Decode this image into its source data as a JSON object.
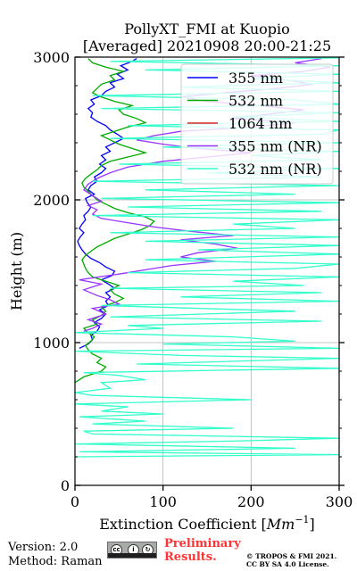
{
  "chart_data": {
    "type": "line",
    "orientation": "vertical-profile",
    "title_line1": "PollyXT_FMI at Kuopio",
    "title_line2": "[Averaged] 20210908 20:00-21:25",
    "xlabel": "Extinction Coefficient [Mm⁻¹]",
    "xlabel_prefix": "Extinction Coefficient [",
    "xlabel_unit": "Mm",
    "xlabel_exp": "−1",
    "xlabel_suffix": "]",
    "ylabel": "Height (m)",
    "xlim": [
      0,
      300
    ],
    "ylim": [
      0,
      3000
    ],
    "xticks": [
      "0",
      "100",
      "200",
      "300"
    ],
    "yticks": [
      "0",
      "1000",
      "2000",
      "3000"
    ],
    "grid": true,
    "legend_position": "top-right",
    "series": [
      {
        "name": "355 nm",
        "color": "#0000ff",
        "points": [
          [
            5,
            960
          ],
          [
            15,
            990
          ],
          [
            20,
            1020
          ],
          [
            18,
            1050
          ],
          [
            25,
            1080
          ],
          [
            28,
            1110
          ],
          [
            22,
            1140
          ],
          [
            30,
            1170
          ],
          [
            35,
            1200
          ],
          [
            28,
            1230
          ],
          [
            38,
            1260
          ],
          [
            35,
            1290
          ],
          [
            40,
            1320
          ],
          [
            35,
            1350
          ],
          [
            45,
            1380
          ],
          [
            38,
            1410
          ],
          [
            30,
            1440
          ],
          [
            42,
            1470
          ],
          [
            45,
            1500
          ],
          [
            35,
            1530
          ],
          [
            28,
            1560
          ],
          [
            18,
            1590
          ],
          [
            12,
            1620
          ],
          [
            8,
            1650
          ],
          [
            5,
            1680
          ],
          [
            3,
            1710
          ],
          [
            6,
            1740
          ],
          [
            10,
            1770
          ],
          [
            5,
            1800
          ],
          [
            8,
            1830
          ],
          [
            12,
            1860
          ],
          [
            10,
            1890
          ],
          [
            15,
            1920
          ],
          [
            18,
            1950
          ],
          [
            14,
            1980
          ],
          [
            12,
            2010
          ],
          [
            22,
            2040
          ],
          [
            15,
            2070
          ],
          [
            18,
            2100
          ],
          [
            25,
            2130
          ],
          [
            22,
            2160
          ],
          [
            30,
            2190
          ],
          [
            35,
            2220
          ],
          [
            28,
            2250
          ],
          [
            35,
            2280
          ],
          [
            30,
            2310
          ],
          [
            40,
            2340
          ],
          [
            35,
            2370
          ],
          [
            45,
            2400
          ],
          [
            55,
            2430
          ],
          [
            48,
            2460
          ],
          [
            40,
            2490
          ],
          [
            35,
            2520
          ],
          [
            25,
            2550
          ],
          [
            18,
            2580
          ],
          [
            20,
            2610
          ],
          [
            15,
            2640
          ],
          [
            22,
            2670
          ],
          [
            18,
            2700
          ],
          [
            30,
            2730
          ],
          [
            35,
            2760
          ],
          [
            45,
            2790
          ],
          [
            40,
            2820
          ],
          [
            55,
            2850
          ],
          [
            48,
            2880
          ],
          [
            60,
            2910
          ],
          [
            52,
            2940
          ],
          [
            65,
            2970
          ],
          [
            70,
            2990
          ]
        ]
      },
      {
        "name": "532 nm",
        "color": "#00aa00",
        "points": [
          [
            0,
            720
          ],
          [
            10,
            760
          ],
          [
            30,
            800
          ],
          [
            35,
            830
          ],
          [
            25,
            860
          ],
          [
            30,
            890
          ],
          [
            20,
            920
          ],
          [
            15,
            950
          ],
          [
            12,
            980
          ],
          [
            18,
            1010
          ],
          [
            22,
            1040
          ],
          [
            15,
            1070
          ],
          [
            10,
            1100
          ],
          [
            25,
            1130
          ],
          [
            20,
            1160
          ],
          [
            30,
            1190
          ],
          [
            35,
            1220
          ],
          [
            30,
            1250
          ],
          [
            45,
            1280
          ],
          [
            55,
            1310
          ],
          [
            45,
            1340
          ],
          [
            40,
            1370
          ],
          [
            50,
            1400
          ],
          [
            35,
            1430
          ],
          [
            20,
            1460
          ],
          [
            15,
            1490
          ],
          [
            12,
            1520
          ],
          [
            10,
            1550
          ],
          [
            8,
            1580
          ],
          [
            12,
            1610
          ],
          [
            18,
            1640
          ],
          [
            25,
            1670
          ],
          [
            35,
            1700
          ],
          [
            45,
            1730
          ],
          [
            60,
            1760
          ],
          [
            75,
            1790
          ],
          [
            85,
            1820
          ],
          [
            90,
            1850
          ],
          [
            80,
            1880
          ],
          [
            60,
            1910
          ],
          [
            45,
            1940
          ],
          [
            35,
            1970
          ],
          [
            25,
            2000
          ],
          [
            20,
            2030
          ],
          [
            15,
            2060
          ],
          [
            10,
            2090
          ],
          [
            8,
            2120
          ],
          [
            12,
            2150
          ],
          [
            18,
            2180
          ],
          [
            25,
            2210
          ],
          [
            30,
            2240
          ],
          [
            40,
            2270
          ],
          [
            60,
            2300
          ],
          [
            80,
            2330
          ],
          [
            65,
            2360
          ],
          [
            50,
            2390
          ],
          [
            40,
            2420
          ],
          [
            30,
            2450
          ],
          [
            45,
            2480
          ],
          [
            60,
            2510
          ],
          [
            80,
            2540
          ],
          [
            70,
            2570
          ],
          [
            55,
            2600
          ],
          [
            50,
            2630
          ],
          [
            65,
            2660
          ],
          [
            45,
            2690
          ],
          [
            30,
            2720
          ],
          [
            20,
            2750
          ],
          [
            25,
            2780
          ],
          [
            30,
            2810
          ],
          [
            45,
            2840
          ],
          [
            40,
            2870
          ],
          [
            55,
            2900
          ],
          [
            35,
            2930
          ],
          [
            20,
            2960
          ],
          [
            15,
            2990
          ]
        ]
      },
      {
        "name": "1064 nm",
        "color": "#d62728",
        "points": []
      },
      {
        "name": "355 nm (NR)",
        "color": "#9933ff",
        "points": [
          [
            10,
            1080
          ],
          [
            20,
            1100
          ],
          [
            30,
            1130
          ],
          [
            15,
            1160
          ],
          [
            35,
            1200
          ],
          [
            20,
            1240
          ],
          [
            50,
            1270
          ],
          [
            40,
            1300
          ],
          [
            25,
            1330
          ],
          [
            10,
            1370
          ],
          [
            30,
            1410
          ],
          [
            5,
            1440
          ],
          [
            50,
            1480
          ],
          [
            80,
            1510
          ],
          [
            110,
            1540
          ],
          [
            160,
            1570
          ],
          [
            120,
            1600
          ],
          [
            140,
            1630
          ],
          [
            185,
            1660
          ],
          [
            160,
            1690
          ],
          [
            120,
            1720
          ],
          [
            180,
            1750
          ],
          [
            130,
            1780
          ],
          [
            90,
            1810
          ],
          [
            60,
            1840
          ],
          [
            30,
            1870
          ],
          [
            20,
            1900
          ],
          [
            25,
            1930
          ],
          [
            15,
            1960
          ],
          [
            30,
            1990
          ],
          [
            20,
            2030
          ],
          [
            10,
            2070
          ],
          [
            15,
            2110
          ],
          [
            25,
            2150
          ],
          [
            40,
            2190
          ],
          [
            60,
            2230
          ],
          [
            100,
            2270
          ],
          [
            150,
            2300
          ],
          [
            200,
            2330
          ],
          [
            140,
            2360
          ],
          [
            100,
            2390
          ],
          [
            70,
            2420
          ],
          [
            90,
            2450
          ],
          [
            120,
            2480
          ],
          [
            200,
            2510
          ],
          [
            250,
            2540
          ],
          [
            180,
            2570
          ],
          [
            220,
            2600
          ],
          [
            260,
            2630
          ],
          [
            210,
            2660
          ],
          [
            150,
            2690
          ],
          [
            120,
            2720
          ],
          [
            170,
            2750
          ],
          [
            230,
            2780
          ],
          [
            270,
            2810
          ],
          [
            240,
            2840
          ],
          [
            200,
            2870
          ],
          [
            260,
            2900
          ],
          [
            290,
            2930
          ],
          [
            250,
            2960
          ],
          [
            280,
            2990
          ]
        ]
      },
      {
        "name": "532 nm (NR)",
        "color": "#33ffcc",
        "points": [
          [
            0,
            200
          ],
          [
            300,
            215
          ],
          [
            5,
            235
          ],
          [
            250,
            260
          ],
          [
            0,
            290
          ],
          [
            180,
            310
          ],
          [
            300,
            330
          ],
          [
            20,
            360
          ],
          [
            10,
            380
          ],
          [
            180,
            400
          ],
          [
            20,
            430
          ],
          [
            80,
            450
          ],
          [
            5,
            480
          ],
          [
            100,
            500
          ],
          [
            30,
            520
          ],
          [
            60,
            550
          ],
          [
            0,
            570
          ],
          [
            200,
            600
          ],
          [
            20,
            630
          ],
          [
            0,
            650
          ],
          [
            40,
            680
          ],
          [
            30,
            720
          ],
          [
            80,
            740
          ],
          [
            50,
            770
          ],
          [
            10,
            790
          ],
          [
            300,
            820
          ],
          [
            70,
            850
          ],
          [
            300,
            890
          ],
          [
            120,
            910
          ],
          [
            0,
            940
          ],
          [
            300,
            960
          ],
          [
            100,
            990
          ],
          [
            250,
            1010
          ],
          [
            180,
            1040
          ],
          [
            0,
            1070
          ],
          [
            100,
            1100
          ],
          [
            60,
            1120
          ],
          [
            280,
            1150
          ],
          [
            40,
            1180
          ],
          [
            250,
            1220
          ],
          [
            30,
            1260
          ],
          [
            300,
            1290
          ],
          [
            120,
            1320
          ],
          [
            280,
            1350
          ],
          [
            40,
            1380
          ],
          [
            260,
            1400
          ],
          [
            180,
            1430
          ],
          [
            300,
            1460
          ],
          [
            60,
            1490
          ],
          [
            250,
            1520
          ],
          [
            300,
            1550
          ],
          [
            80,
            1580
          ],
          [
            300,
            1620
          ],
          [
            140,
            1650
          ],
          [
            300,
            1680
          ],
          [
            80,
            1710
          ],
          [
            300,
            1740
          ],
          [
            40,
            1770
          ],
          [
            250,
            1800
          ],
          [
            180,
            1830
          ],
          [
            300,
            1860
          ],
          [
            20,
            1890
          ],
          [
            280,
            1920
          ],
          [
            60,
            1950
          ],
          [
            300,
            1980
          ],
          [
            30,
            2010
          ],
          [
            250,
            2040
          ],
          [
            80,
            2070
          ],
          [
            300,
            2100
          ],
          [
            20,
            2130
          ],
          [
            280,
            2160
          ],
          [
            150,
            2190
          ],
          [
            300,
            2220
          ],
          [
            50,
            2250
          ],
          [
            280,
            2280
          ],
          [
            200,
            2310
          ],
          [
            300,
            2340
          ],
          [
            100,
            2370
          ],
          [
            300,
            2400
          ],
          [
            40,
            2430
          ],
          [
            280,
            2460
          ],
          [
            300,
            2490
          ],
          [
            60,
            2520
          ],
          [
            300,
            2550
          ],
          [
            180,
            2580
          ],
          [
            300,
            2610
          ],
          [
            30,
            2640
          ],
          [
            300,
            2670
          ],
          [
            250,
            2700
          ],
          [
            20,
            2730
          ],
          [
            300,
            2760
          ],
          [
            120,
            2790
          ],
          [
            300,
            2820
          ],
          [
            200,
            2850
          ],
          [
            300,
            2880
          ],
          [
            80,
            2910
          ],
          [
            300,
            2940
          ],
          [
            40,
            2970
          ],
          [
            300,
            2995
          ]
        ]
      }
    ]
  },
  "footer": {
    "version": "Version: 2.0",
    "method": "Method: Raman",
    "preliminary_line1": "Preliminary",
    "preliminary_line2": "Results.",
    "copyright_line1": "© TROPOS & FMI 2021.",
    "copyright_line2": "CC BY SA 4.0 License."
  },
  "license_badge": {
    "icons": [
      "cc",
      "by",
      "sa"
    ],
    "icon_names": [
      "creative-commons-icon",
      "attribution-icon",
      "share-alike-icon"
    ],
    "labels": [
      "cc",
      "i",
      "↻"
    ]
  }
}
